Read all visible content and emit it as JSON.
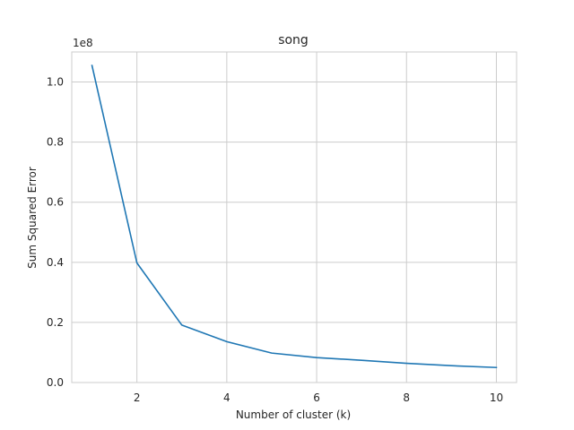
{
  "chart_data": {
    "type": "line",
    "title": "song",
    "xlabel": "Number of cluster (k)",
    "ylabel": "Sum Squared Error",
    "y_offset_text": "1e8",
    "x": [
      1,
      2,
      3,
      4,
      5,
      6,
      7,
      8,
      9,
      10
    ],
    "series": [
      {
        "values": [
          105500000,
          39800000,
          19100000,
          13600000,
          9800000,
          8300000,
          7400000,
          6400000,
          5600000,
          5000000
        ]
      }
    ],
    "xlim": [
      0.55,
      10.45
    ],
    "ylim": [
      0,
      110000000
    ],
    "x_ticks": [
      2,
      4,
      6,
      8,
      10
    ],
    "y_ticks": [
      0,
      20000000,
      40000000,
      60000000,
      80000000,
      100000000
    ],
    "y_tick_labels": [
      "0.0",
      "0.2",
      "0.4",
      "0.6",
      "0.8",
      "1.0"
    ],
    "grid": true,
    "line_color": "#1f77b4",
    "grid_color": "#cccccc"
  }
}
